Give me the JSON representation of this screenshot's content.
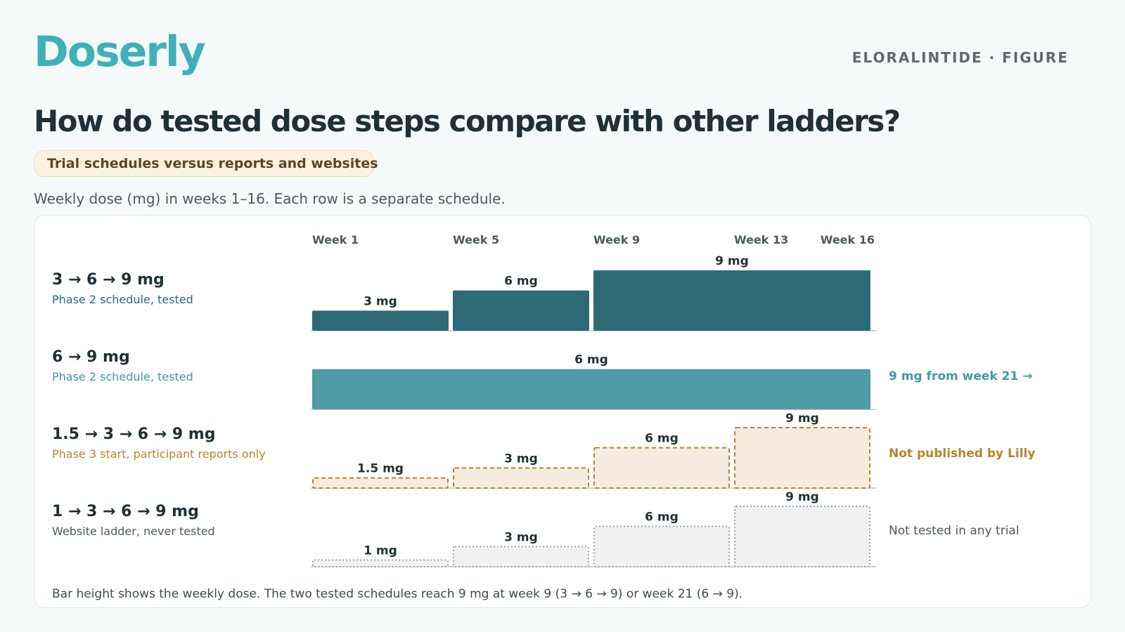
{
  "brand": "Doserly",
  "eyebrow": "ELORALINTIDE · FIGURE",
  "title": "How do tested dose steps compare with other ladders?",
  "pill": "Trial schedules versus reports and websites",
  "subtitle": "Weekly dose (mg) in weeks 1–16. Each row is a separate schedule.",
  "footnote": "Bar height shows the weekly dose. The two tested schedules reach 9 mg at week 9 (3 → 6 → 9) or week 21 (6 → 9).",
  "colors": {
    "tested_dark": "#2e6a76",
    "tested_light": "#4f9ca6",
    "reported_stroke": "#b8862e",
    "reported_fill": "#f5ebdf",
    "reported_text": "#b5852c",
    "website_stroke": "#9aa3a7",
    "website_fill": "#f0f1f2",
    "website_text": "#4b5a5f"
  },
  "chart_data": {
    "type": "bar",
    "x_ticks": [
      "Week 1",
      "Week 5",
      "Week 9",
      "Week 13",
      "Week 16"
    ],
    "x_tick_weeks": [
      1,
      5,
      9,
      13,
      16
    ],
    "xlim": [
      1,
      17
    ],
    "y_unit": "mg",
    "ymax": 9,
    "rows": [
      {
        "name": "3 → 6 → 9 mg",
        "desc": "Phase 2 schedule, tested",
        "style": "solid-dark",
        "note": "",
        "segments": [
          {
            "start_week": 1,
            "end_week": 4,
            "dose": 3,
            "label": "3 mg"
          },
          {
            "start_week": 5,
            "end_week": 8,
            "dose": 6,
            "label": "6 mg"
          },
          {
            "start_week": 9,
            "end_week": 16,
            "dose": 9,
            "label": "9 mg"
          }
        ]
      },
      {
        "name": "6 → 9 mg",
        "desc": "Phase 2 schedule, tested",
        "style": "solid-light",
        "note": "9 mg from week 21 →",
        "segments": [
          {
            "start_week": 1,
            "end_week": 16,
            "dose": 6,
            "label": "6 mg"
          }
        ]
      },
      {
        "name": "1.5 → 3 → 6 → 9 mg",
        "desc": "Phase 3 start, participant reports only",
        "style": "dashed",
        "note": "Not published by Lilly",
        "segments": [
          {
            "start_week": 1,
            "end_week": 4,
            "dose": 1.5,
            "label": "1.5 mg"
          },
          {
            "start_week": 5,
            "end_week": 8,
            "dose": 3,
            "label": "3 mg"
          },
          {
            "start_week": 9,
            "end_week": 12,
            "dose": 6,
            "label": "6 mg"
          },
          {
            "start_week": 13,
            "end_week": 16,
            "dose": 9,
            "label": "9 mg"
          }
        ]
      },
      {
        "name": "1 → 3 → 6 → 9 mg",
        "desc": "Website ladder, never tested",
        "style": "dotted",
        "note": "Not tested in any trial",
        "segments": [
          {
            "start_week": 1,
            "end_week": 4,
            "dose": 1,
            "label": "1 mg"
          },
          {
            "start_week": 5,
            "end_week": 8,
            "dose": 3,
            "label": "3 mg"
          },
          {
            "start_week": 9,
            "end_week": 12,
            "dose": 6,
            "label": "6 mg"
          },
          {
            "start_week": 13,
            "end_week": 16,
            "dose": 9,
            "label": "9 mg"
          }
        ]
      }
    ]
  }
}
